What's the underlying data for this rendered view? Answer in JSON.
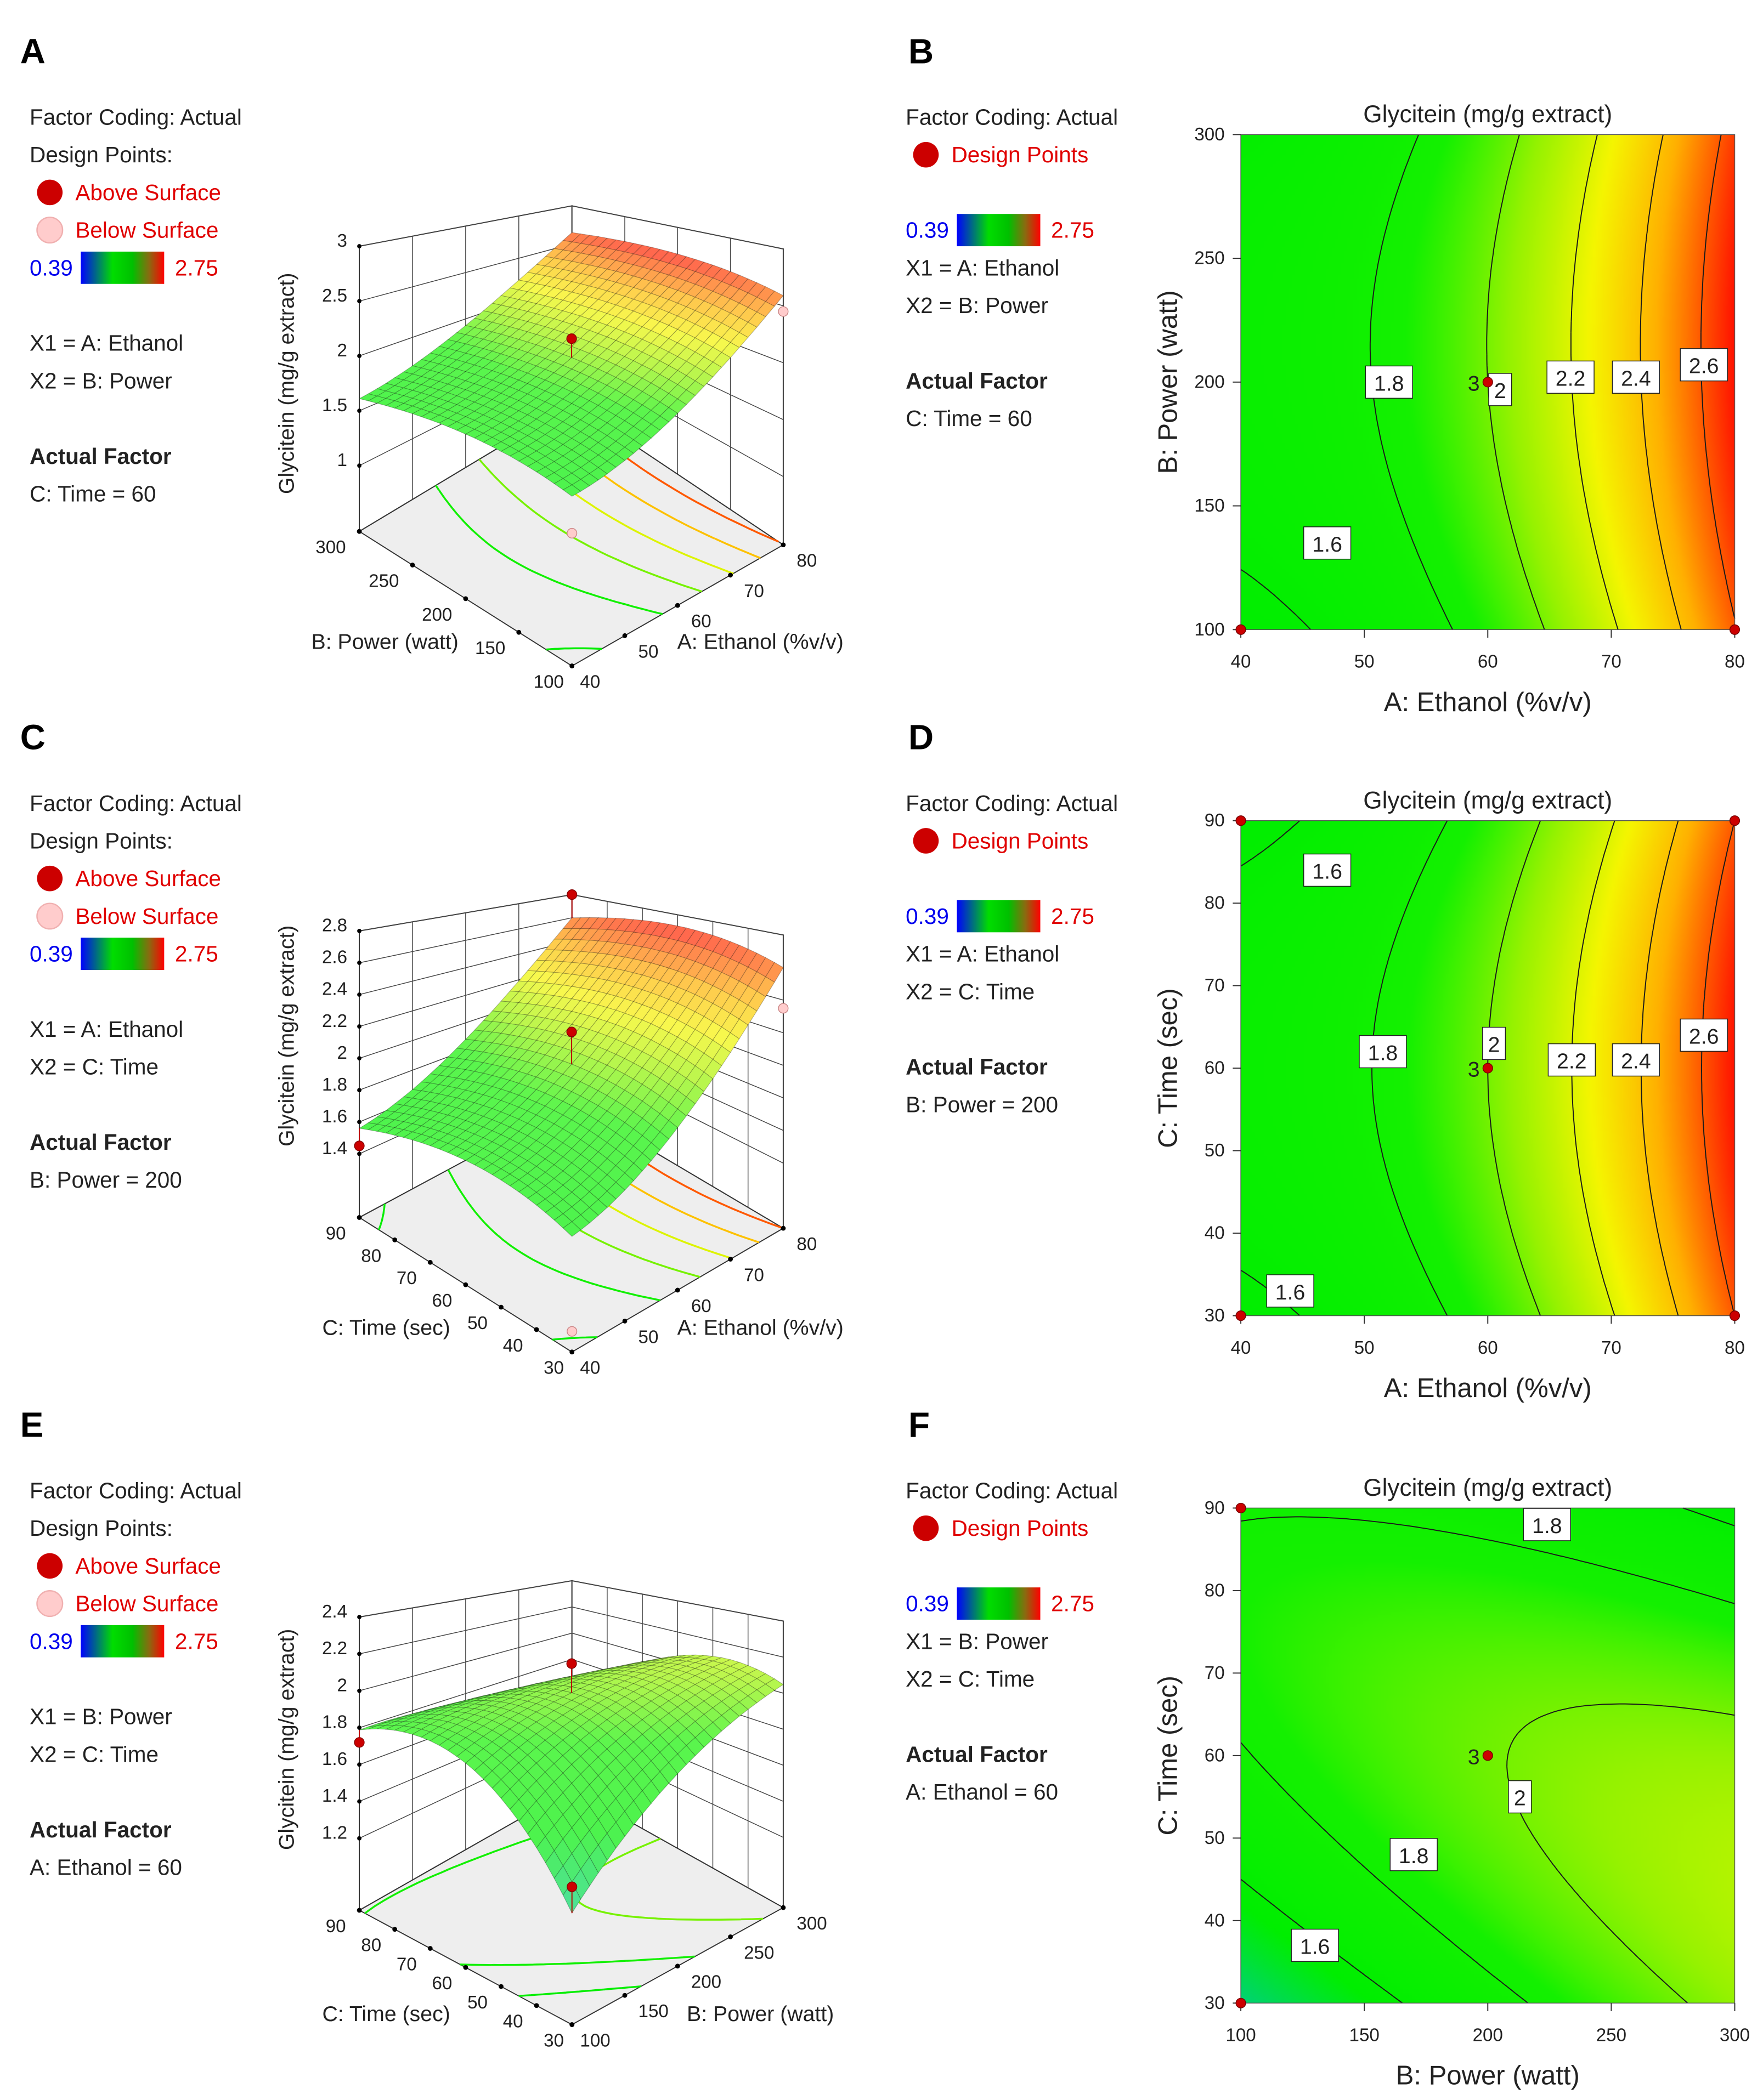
{
  "panels": [
    {
      "letter": "A",
      "kind": "surface",
      "legend": {
        "factor_coding": "Factor Coding: Actual",
        "design_points": "Design Points:",
        "above": "Above Surface",
        "below": "Below Surface",
        "cbar_min": "0.39",
        "cbar_max": "2.75",
        "x1": "X1 = A: Ethanol",
        "x2": "X2 = B: Power",
        "actual_factor_title": "Actual Factor",
        "actual_factor": "C: Time = 60"
      },
      "zlabel": "Glycitein (mg/g extract)",
      "zticks": [
        "1",
        "1.5",
        "2",
        "2.5",
        "3"
      ],
      "x1label": "A: Ethanol (%v/v)",
      "x1ticks": [
        "40",
        "50",
        "60",
        "70",
        "80"
      ],
      "x2label": "B: Power (watt)",
      "x2ticks": [
        "100",
        "150",
        "200",
        "250",
        "300"
      ]
    },
    {
      "letter": "B",
      "kind": "contour",
      "legend": {
        "factor_coding": "Factor Coding: Actual",
        "design_points": "Design Points",
        "cbar_min": "0.39",
        "cbar_max": "2.75",
        "x1": "X1 = A: Ethanol",
        "x2": "X2 = B: Power",
        "actual_factor_title": "Actual Factor",
        "actual_factor": "C: Time = 60"
      },
      "title": "Glycitein (mg/g extract)",
      "xlabel": "A: Ethanol (%v/v)",
      "xticks": [
        "40",
        "50",
        "60",
        "70",
        "80"
      ],
      "ylabel": "B: Power (watt)",
      "yticks": [
        "100",
        "150",
        "200",
        "250",
        "300"
      ],
      "contour_labels": [
        "1.8",
        "1.6",
        "2",
        "2.2",
        "2.4",
        "2.6"
      ],
      "point_label": "3"
    },
    {
      "letter": "C",
      "kind": "surface",
      "legend": {
        "factor_coding": "Factor Coding: Actual",
        "design_points": "Design Points:",
        "above": "Above Surface",
        "below": "Below Surface",
        "cbar_min": "0.39",
        "cbar_max": "2.75",
        "x1": "X1 = A: Ethanol",
        "x2": "X2 = C: Time",
        "actual_factor_title": "Actual Factor",
        "actual_factor": "B: Power = 200"
      },
      "zlabel": "Glycitein (mg/g extract)",
      "zticks": [
        "1.4",
        "1.6",
        "1.8",
        "2",
        "2.2",
        "2.4",
        "2.6",
        "2.8"
      ],
      "x1label": "A: Ethanol (%v/v)",
      "x1ticks": [
        "40",
        "50",
        "60",
        "70",
        "80"
      ],
      "x2label": "C: Time (sec)",
      "x2ticks": [
        "30",
        "40",
        "50",
        "60",
        "70",
        "80",
        "90"
      ]
    },
    {
      "letter": "D",
      "kind": "contour",
      "legend": {
        "factor_coding": "Factor Coding: Actual",
        "design_points": "Design Points",
        "cbar_min": "0.39",
        "cbar_max": "2.75",
        "x1": "X1 = A: Ethanol",
        "x2": "X2 = C: Time",
        "actual_factor_title": "Actual Factor",
        "actual_factor": "B: Power = 200"
      },
      "title": "Glycitein (mg/g extract)",
      "xlabel": "A: Ethanol (%v/v)",
      "xticks": [
        "40",
        "50",
        "60",
        "70",
        "80"
      ],
      "ylabel": "C: Time (sec)",
      "yticks": [
        "30",
        "40",
        "50",
        "60",
        "70",
        "80",
        "90"
      ],
      "contour_labels": [
        "1.6",
        "1.8",
        "2",
        "2.2",
        "2.4",
        "2.6",
        "1.6"
      ],
      "point_label": "3"
    },
    {
      "letter": "E",
      "kind": "surface",
      "legend": {
        "factor_coding": "Factor Coding: Actual",
        "design_points": "Design Points:",
        "above": "Above Surface",
        "below": "Below Surface",
        "cbar_min": "0.39",
        "cbar_max": "2.75",
        "x1": "X1 = B: Power",
        "x2": "X2 = C: Time",
        "actual_factor_title": "Actual Factor",
        "actual_factor": "A: Ethanol = 60"
      },
      "zlabel": "Glycitein (mg/g extract)",
      "zticks": [
        "1.2",
        "1.4",
        "1.6",
        "1.8",
        "2",
        "2.2",
        "2.4"
      ],
      "x1label": "B: Power (watt)",
      "x1ticks": [
        "100",
        "150",
        "200",
        "250",
        "300"
      ],
      "x2label": "C: Time (sec)",
      "x2ticks": [
        "30",
        "40",
        "50",
        "60",
        "70",
        "80",
        "90"
      ]
    },
    {
      "letter": "F",
      "kind": "contour",
      "legend": {
        "factor_coding": "Factor Coding: Actual",
        "design_points": "Design Points",
        "cbar_min": "0.39",
        "cbar_max": "2.75",
        "x1": "X1 = B: Power",
        "x2": "X2 = C: Time",
        "actual_factor_title": "Actual Factor",
        "actual_factor": "A: Ethanol = 60"
      },
      "title": "Glycitein (mg/g extract)",
      "xlabel": "B: Power (watt)",
      "xticks": [
        "100",
        "150",
        "200",
        "250",
        "300"
      ],
      "ylabel": "C: Time (sec)",
      "yticks": [
        "30",
        "40",
        "50",
        "60",
        "70",
        "80",
        "90"
      ],
      "contour_labels": [
        "1.8",
        "2",
        "1.8",
        "1.6"
      ],
      "point_label": "3"
    }
  ],
  "colors": {
    "low": "#0000ff",
    "mid": "#00ee00",
    "high": "#ff0000",
    "design_point_above": "#cc0000",
    "design_point_below": "#ffc8c8",
    "legend_red": "#e00000",
    "legend_blue": "#0000ee"
  },
  "chart_data": [
    {
      "panel": "A",
      "type": "surface",
      "response": "Glycitein (mg/g extract)",
      "x1": "A: Ethanol (%v/v)",
      "x1_range": [
        40,
        80
      ],
      "x2": "B: Power (watt)",
      "x2_range": [
        100,
        300
      ],
      "z_range": [
        1,
        3
      ],
      "fixed": "C: Time = 60",
      "color_range": [
        0.39,
        2.75
      ],
      "design_points": [
        {
          "x1": 60,
          "x2": 200,
          "z": 2.17,
          "position": "above"
        },
        {
          "x1": 40,
          "x2": 100,
          "z": 1.3,
          "position": "below"
        },
        {
          "x1": 80,
          "x2": 100,
          "z": 2.45,
          "position": "below"
        }
      ]
    },
    {
      "panel": "B",
      "type": "contour",
      "title": "Glycitein (mg/g extract)",
      "x": "A: Ethanol (%v/v)",
      "x_range": [
        40,
        80
      ],
      "y": "B: Power (watt)",
      "y_range": [
        100,
        300
      ],
      "levels": [
        1.6,
        1.8,
        2.0,
        2.2,
        2.4,
        2.6
      ],
      "fixed": "C: Time = 60",
      "design_points": [
        {
          "x": 40,
          "y": 100
        },
        {
          "x": 80,
          "y": 100
        },
        {
          "x": 60,
          "y": 200,
          "replicates": 3
        }
      ]
    },
    {
      "panel": "C",
      "type": "surface",
      "response": "Glycitein (mg/g extract)",
      "x1": "A: Ethanol (%v/v)",
      "x1_range": [
        40,
        80
      ],
      "x2": "C: Time (sec)",
      "x2_range": [
        30,
        90
      ],
      "z_range": [
        1.4,
        2.8
      ],
      "fixed": "B: Power = 200",
      "color_range": [
        0.39,
        2.75
      ],
      "design_points": [
        {
          "x1": 80,
          "x2": 90,
          "z": 2.8,
          "position": "above"
        },
        {
          "x1": 60,
          "x2": 60,
          "z": 2.2,
          "position": "above"
        },
        {
          "x1": 40,
          "x2": 90,
          "z": 1.45,
          "position": "above"
        },
        {
          "x1": 80,
          "x2": 30,
          "z": 2.35,
          "position": "below"
        },
        {
          "x1": 40,
          "x2": 30,
          "z": 1.1,
          "position": "below"
        }
      ]
    },
    {
      "panel": "D",
      "type": "contour",
      "title": "Glycitein (mg/g extract)",
      "x": "A: Ethanol (%v/v)",
      "x_range": [
        40,
        80
      ],
      "y": "C: Time (sec)",
      "y_range": [
        30,
        90
      ],
      "levels": [
        1.6,
        1.8,
        2.0,
        2.2,
        2.4,
        2.6
      ],
      "fixed": "B: Power = 200",
      "design_points": [
        {
          "x": 40,
          "y": 90
        },
        {
          "x": 80,
          "y": 90
        },
        {
          "x": 60,
          "y": 60,
          "replicates": 3
        },
        {
          "x": 40,
          "y": 30
        },
        {
          "x": 80,
          "y": 30
        }
      ]
    },
    {
      "panel": "E",
      "type": "surface",
      "response": "Glycitein (mg/g extract)",
      "x1": "B: Power (watt)",
      "x1_range": [
        100,
        300
      ],
      "x2": "C: Time (sec)",
      "x2_range": [
        30,
        90
      ],
      "z_range": [
        1.2,
        2.4
      ],
      "fixed": "A: Ethanol = 60",
      "color_range": [
        0.39,
        2.75
      ],
      "design_points": [
        {
          "x1": 200,
          "x2": 60,
          "z": 2.15,
          "position": "above"
        },
        {
          "x1": 100,
          "x2": 30,
          "z": 1.4,
          "position": "above"
        },
        {
          "x1": 100,
          "x2": 90,
          "z": 1.72,
          "position": "above"
        }
      ]
    },
    {
      "panel": "F",
      "type": "contour",
      "title": "Glycitein (mg/g extract)",
      "x": "B: Power (watt)",
      "x_range": [
        100,
        300
      ],
      "y": "C: Time (sec)",
      "y_range": [
        30,
        90
      ],
      "levels": [
        1.6,
        1.8,
        2.0
      ],
      "fixed": "A: Ethanol = 60",
      "design_points": [
        {
          "x": 100,
          "y": 90
        },
        {
          "x": 200,
          "y": 60,
          "replicates": 3
        },
        {
          "x": 100,
          "y": 30
        }
      ]
    }
  ]
}
